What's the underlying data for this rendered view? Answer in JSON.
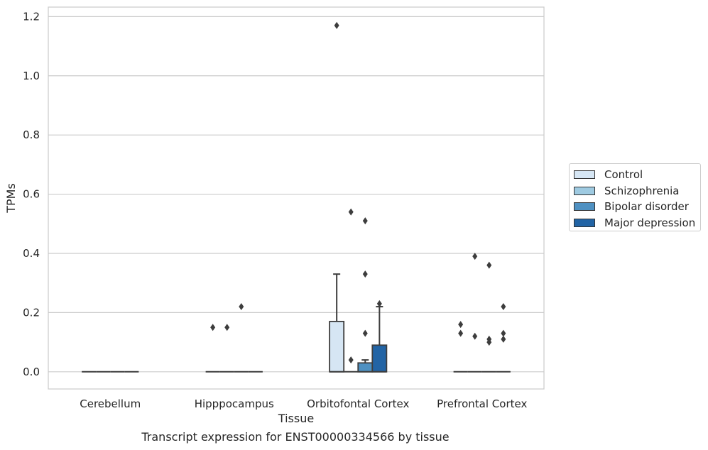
{
  "chart_data": {
    "type": "boxplot",
    "xlabel": "Tissue",
    "ylabel": "TPMs",
    "ylim": [
      -0.058,
      1.232
    ],
    "yticks": [
      "0.0",
      "0.2",
      "0.4",
      "0.6",
      "0.8",
      "1.0",
      "1.2"
    ],
    "grid": true,
    "legend_position": "right",
    "categories": [
      "Cerebellum",
      "Hipppocampus",
      "Orbitofontal Cortex",
      "Prefrontal Cortex"
    ],
    "series": [
      {
        "name": "Control",
        "color": "#d6e6f4",
        "boxes": [
          {
            "q1": 0,
            "median": 0,
            "q3": 0,
            "whisker_low": 0,
            "whisker_high": 0,
            "outliers": []
          },
          {
            "q1": 0,
            "median": 0,
            "q3": 0,
            "whisker_low": 0,
            "whisker_high": 0,
            "outliers": [
              0.15
            ]
          },
          {
            "q1": 0,
            "median": 0,
            "q3": 0.17,
            "whisker_low": 0,
            "whisker_high": 0.33,
            "outliers": [
              1.17
            ]
          },
          {
            "q1": 0,
            "median": 0,
            "q3": 0,
            "whisker_low": 0,
            "whisker_high": 0,
            "outliers": [
              0.16,
              0.13
            ]
          }
        ]
      },
      {
        "name": "Schizophrenia",
        "color": "#9ecae1",
        "boxes": [
          {
            "q1": 0,
            "median": 0,
            "q3": 0,
            "whisker_low": 0,
            "whisker_high": 0,
            "outliers": []
          },
          {
            "q1": 0,
            "median": 0,
            "q3": 0,
            "whisker_low": 0,
            "whisker_high": 0,
            "outliers": [
              0.15
            ]
          },
          {
            "q1": 0,
            "median": 0,
            "q3": 0,
            "whisker_low": 0,
            "whisker_high": 0,
            "outliers": [
              0.54,
              0.04
            ]
          },
          {
            "q1": 0,
            "median": 0,
            "q3": 0,
            "whisker_low": 0,
            "whisker_high": 0,
            "outliers": [
              0.39,
              0.12
            ]
          }
        ]
      },
      {
        "name": "Bipolar disorder",
        "color": "#4f91c2",
        "boxes": [
          {
            "q1": 0,
            "median": 0,
            "q3": 0,
            "whisker_low": 0,
            "whisker_high": 0,
            "outliers": []
          },
          {
            "q1": 0,
            "median": 0,
            "q3": 0,
            "whisker_low": 0,
            "whisker_high": 0,
            "outliers": [
              0.22
            ]
          },
          {
            "q1": 0,
            "median": 0,
            "q3": 0.03,
            "whisker_low": 0,
            "whisker_high": 0.04,
            "outliers": [
              0.51,
              0.33,
              0.13
            ]
          },
          {
            "q1": 0,
            "median": 0,
            "q3": 0,
            "whisker_low": 0,
            "whisker_high": 0,
            "outliers": [
              0.36,
              0.11,
              0.1
            ]
          }
        ]
      },
      {
        "name": "Major depression",
        "color": "#2264a5",
        "boxes": [
          {
            "q1": 0,
            "median": 0,
            "q3": 0,
            "whisker_low": 0,
            "whisker_high": 0,
            "outliers": []
          },
          {
            "q1": 0,
            "median": 0,
            "q3": 0,
            "whisker_low": 0,
            "whisker_high": 0,
            "outliers": []
          },
          {
            "q1": 0,
            "median": 0,
            "q3": 0.09,
            "whisker_low": 0,
            "whisker_high": 0.22,
            "outliers": [
              0.23
            ]
          },
          {
            "q1": 0,
            "median": 0,
            "q3": 0,
            "whisker_low": 0,
            "whisker_high": 0,
            "outliers": [
              0.22,
              0.13,
              0.11
            ]
          }
        ]
      }
    ]
  },
  "caption": "Transcript expression for ENST00000334566 by tissue"
}
